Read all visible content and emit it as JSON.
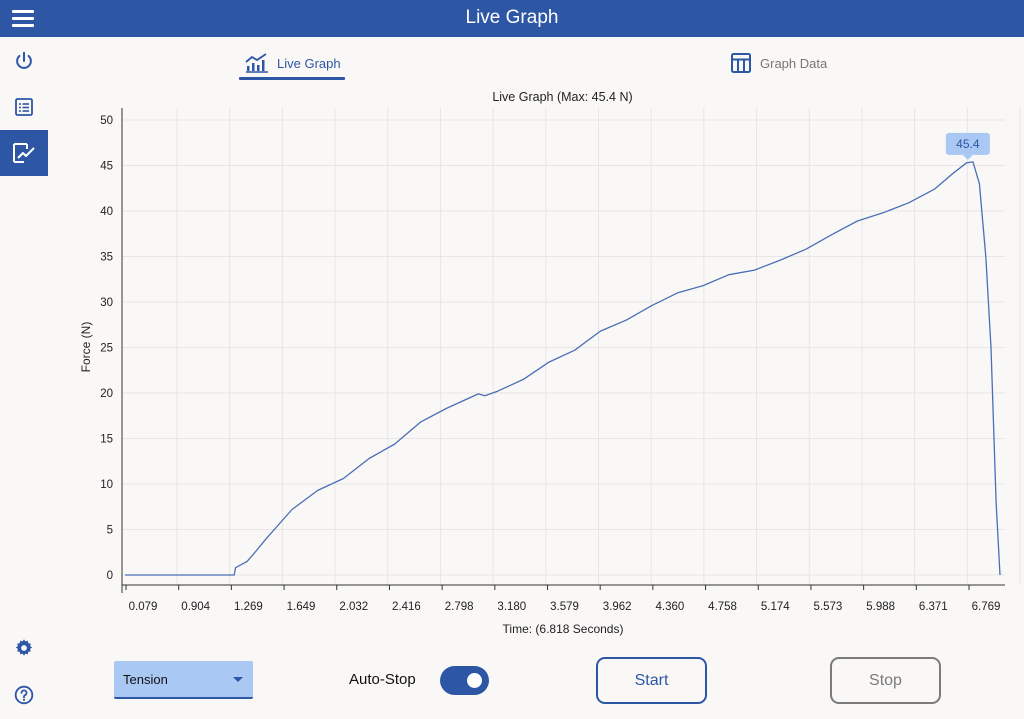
{
  "header": {
    "title": "Live Graph"
  },
  "tabs": [
    {
      "label": "Live Graph",
      "active": true
    },
    {
      "label": "Graph Data",
      "active": false
    }
  ],
  "sidebar": {
    "items": [
      {
        "icon": "power-icon"
      },
      {
        "icon": "list-icon"
      },
      {
        "icon": "chart-icon",
        "active": true
      }
    ],
    "bottom": [
      {
        "icon": "gear-icon"
      },
      {
        "icon": "help-icon"
      }
    ]
  },
  "colors": {
    "accent": "#2d57a5",
    "line": "#4a6fb5",
    "tooltip": "#a9c8f3"
  },
  "chart_data": {
    "type": "line",
    "title": "Live Graph (Max: 45.4 N)",
    "xlabel": "Time: (6.818 Seconds)",
    "ylabel": "Force (N)",
    "ylim": [
      0,
      50
    ],
    "xlim": [
      0,
      6.818
    ],
    "yticks": [
      0,
      5,
      10,
      15,
      20,
      25,
      30,
      35,
      40,
      45,
      50
    ],
    "xticks": [
      "0.079",
      "0.904",
      "1.269",
      "1.649",
      "2.032",
      "2.416",
      "2.798",
      "3.180",
      "3.579",
      "3.962",
      "4.360",
      "4.758",
      "5.174",
      "5.573",
      "5.988",
      "6.371",
      "6.769"
    ],
    "grid": true,
    "annotation": {
      "label": "45.4",
      "x": 6.56,
      "y": 45.4
    },
    "x": [
      0,
      0.85,
      0.86,
      0.95,
      1.0,
      1.1,
      1.3,
      1.5,
      1.7,
      1.9,
      2.1,
      2.3,
      2.5,
      2.75,
      2.8,
      2.9,
      3.1,
      3.3,
      3.5,
      3.7,
      3.9,
      4.1,
      4.3,
      4.5,
      4.7,
      4.9,
      5.1,
      5.3,
      5.5,
      5.7,
      5.9,
      6.1,
      6.3,
      6.45,
      6.55,
      6.6,
      6.65,
      6.7,
      6.74,
      6.78,
      6.81
    ],
    "y": [
      0,
      0,
      0.8,
      1.5,
      2.3,
      4.0,
      7.2,
      9.3,
      10.6,
      12.8,
      14.4,
      16.8,
      18.3,
      19.9,
      19.7,
      20.2,
      21.5,
      23.4,
      24.7,
      26.8,
      28.0,
      29.6,
      31.0,
      31.8,
      33.0,
      33.5,
      34.6,
      35.8,
      37.4,
      38.9,
      39.8,
      40.9,
      42.4,
      44.2,
      45.3,
      45.4,
      43.0,
      35.0,
      25.0,
      8.0,
      0
    ]
  },
  "controls": {
    "mode": "Tension",
    "autostop_label": "Auto-Stop",
    "autostop_on": true,
    "start_label": "Start",
    "stop_label": "Stop"
  }
}
